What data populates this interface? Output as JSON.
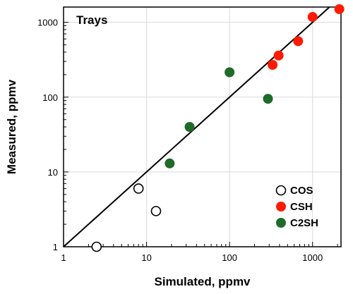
{
  "chart_data": {
    "type": "scatter",
    "title": "Trays",
    "xlabel": "Simulated, ppmv",
    "ylabel": "Measured, ppmv",
    "xscale": "log",
    "yscale": "log",
    "xlim": [
      1,
      2200
    ],
    "ylim": [
      1,
      1600
    ],
    "grid": true,
    "legend_position": "bottom-right",
    "x_ticks": [
      "1",
      "10",
      "100",
      "1000"
    ],
    "y_ticks": [
      "1",
      "10",
      "100",
      "1000"
    ],
    "reference_line": {
      "type": "parity",
      "from": [
        1,
        1
      ],
      "to": [
        2200,
        2200
      ]
    },
    "series": [
      {
        "name": "COS",
        "marker": "hollow-circle",
        "color": "#000000",
        "fill": "#ffffff",
        "points": [
          [
            2.5,
            1.0
          ],
          [
            8,
            6
          ],
          [
            13,
            3
          ]
        ]
      },
      {
        "name": "CSH",
        "marker": "filled-circle",
        "color": "#ff1a00",
        "fill": "#ff1a00",
        "points": [
          [
            330,
            270
          ],
          [
            390,
            360
          ],
          [
            670,
            560
          ],
          [
            1000,
            1180
          ],
          [
            2100,
            1500
          ]
        ]
      },
      {
        "name": "C2SH",
        "marker": "filled-circle",
        "color": "#1e6b2a",
        "fill": "#1e6b2a",
        "points": [
          [
            19,
            13
          ],
          [
            33,
            40
          ],
          [
            100,
            215
          ],
          [
            290,
            95
          ]
        ]
      }
    ]
  }
}
